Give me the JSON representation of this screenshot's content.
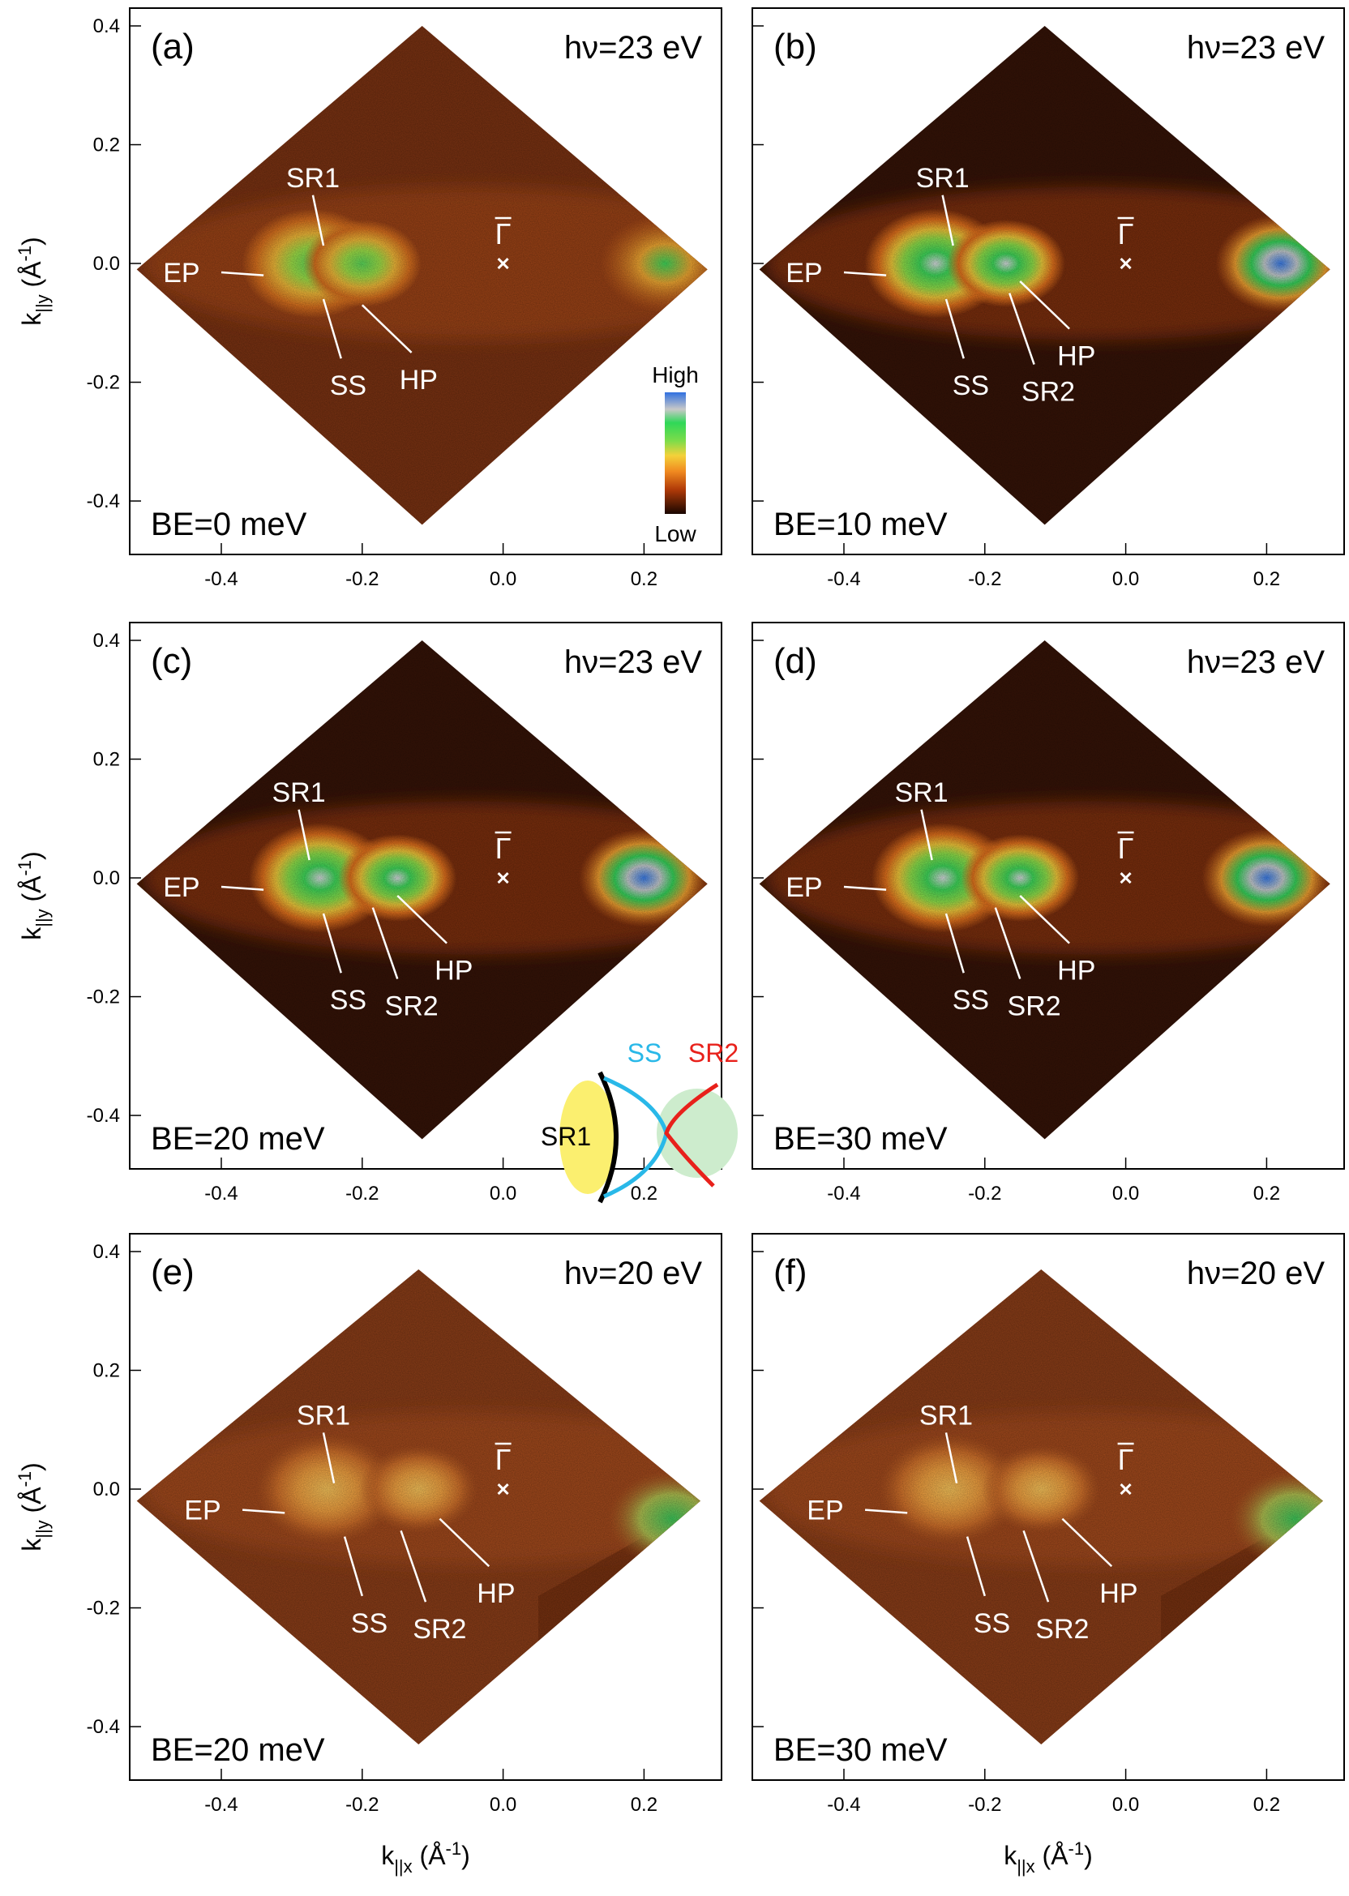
{
  "figure": {
    "axis_labels": {
      "y": {
        "main": "k",
        "sub": "||y",
        "unit": "(Å",
        "exp": "-1",
        "close": ")"
      },
      "x": {
        "main": "k",
        "sub": "||x",
        "unit": "(Å",
        "exp": "-1",
        "close": ")"
      }
    },
    "colorbar": {
      "high": "High",
      "low": "Low"
    },
    "schematic": {
      "ss": "SS",
      "sr2": "SR2",
      "sr1": "SR1",
      "colors": {
        "ss": "#29b8e8",
        "sr2": "#e8211b",
        "sr1_fill": "#fbef6f",
        "sr2_fill": "#cdeccd",
        "sr1_bracket": "#000000"
      }
    },
    "gamma_label": "Γ",
    "gamma_overline": "¯"
  },
  "chart_data": [
    {
      "panel": "(a)",
      "type": "heatmap",
      "hv": "hν=23 eV",
      "be": "BE=0 meV",
      "xlim": [
        -0.53,
        0.31
      ],
      "ylim": [
        -0.49,
        0.43
      ],
      "xticks": [
        "-0.4",
        "-0.2",
        "0.0",
        "0.2"
      ],
      "yticks": [
        "0.4",
        "0.2",
        "0.0",
        "-0.2",
        "-0.4"
      ],
      "show_yticklabels": true,
      "show_xlabel": false,
      "map_region": {
        "left_x": -0.52,
        "right_x": 0.29,
        "top_y": 0.4,
        "bottom_y": -0.44,
        "center_y": -0.01
      },
      "labels": [
        "SR1",
        "EP",
        "SS",
        "HP"
      ],
      "features": [
        {
          "name": "SR1",
          "x": -0.27,
          "y": 0.0
        },
        {
          "name": "HP",
          "x": -0.2,
          "y": 0.0
        },
        {
          "name": "side",
          "x": 0.23,
          "y": 0.0
        }
      ],
      "intensity": "medium"
    },
    {
      "panel": "(b)",
      "type": "heatmap",
      "hv": "hν=23 eV",
      "be": "BE=10 meV",
      "xlim": [
        -0.53,
        0.31
      ],
      "ylim": [
        -0.49,
        0.43
      ],
      "xticks": [
        "-0.4",
        "-0.2",
        "0.0",
        "0.2"
      ],
      "yticks": [
        "0.4",
        "0.2",
        "0.0",
        "-0.2",
        "-0.4"
      ],
      "show_yticklabels": false,
      "show_xlabel": false,
      "map_region": {
        "left_x": -0.52,
        "right_x": 0.29,
        "top_y": 0.4,
        "bottom_y": -0.44,
        "center_y": -0.01
      },
      "labels": [
        "SR1",
        "EP",
        "SS",
        "SR2",
        "HP"
      ],
      "features": [
        {
          "name": "SR1",
          "x": -0.27,
          "y": 0.0
        },
        {
          "name": "HP",
          "x": -0.17,
          "y": 0.0
        },
        {
          "name": "side",
          "x": 0.22,
          "y": 0.0
        }
      ],
      "intensity": "high"
    },
    {
      "panel": "(c)",
      "type": "heatmap",
      "hv": "hν=23 eV",
      "be": "BE=20 meV",
      "xlim": [
        -0.53,
        0.31
      ],
      "ylim": [
        -0.49,
        0.43
      ],
      "xticks": [
        "-0.4",
        "-0.2",
        "0.0",
        "0.2"
      ],
      "yticks": [
        "0.4",
        "0.2",
        "0.0",
        "-0.2",
        "-0.4"
      ],
      "show_yticklabels": true,
      "show_xlabel": false,
      "map_region": {
        "left_x": -0.52,
        "right_x": 0.29,
        "top_y": 0.4,
        "bottom_y": -0.44,
        "center_y": -0.01
      },
      "labels": [
        "SR1",
        "EP",
        "SS",
        "SR2",
        "HP"
      ],
      "features": [
        {
          "name": "SR1",
          "x": -0.26,
          "y": 0.0
        },
        {
          "name": "HP",
          "x": -0.15,
          "y": 0.0
        },
        {
          "name": "side",
          "x": 0.2,
          "y": 0.0
        }
      ],
      "intensity": "high"
    },
    {
      "panel": "(d)",
      "type": "heatmap",
      "hv": "hν=23 eV",
      "be": "BE=30 meV",
      "xlim": [
        -0.53,
        0.31
      ],
      "ylim": [
        -0.49,
        0.43
      ],
      "xticks": [
        "-0.4",
        "-0.2",
        "0.0",
        "0.2"
      ],
      "yticks": [
        "0.4",
        "0.2",
        "0.0",
        "-0.2",
        "-0.4"
      ],
      "show_yticklabels": false,
      "show_xlabel": false,
      "map_region": {
        "left_x": -0.52,
        "right_x": 0.29,
        "top_y": 0.4,
        "bottom_y": -0.44,
        "center_y": -0.01
      },
      "labels": [
        "SR1",
        "EP",
        "SS",
        "SR2",
        "HP"
      ],
      "features": [
        {
          "name": "SR1",
          "x": -0.26,
          "y": 0.0
        },
        {
          "name": "HP",
          "x": -0.15,
          "y": 0.0
        },
        {
          "name": "side",
          "x": 0.2,
          "y": 0.0
        }
      ],
      "intensity": "high"
    },
    {
      "panel": "(e)",
      "type": "heatmap",
      "hv": "hν=20 eV",
      "be": "BE=20 meV",
      "xlim": [
        -0.53,
        0.31
      ],
      "ylim": [
        -0.49,
        0.43
      ],
      "xticks": [
        "-0.4",
        "-0.2",
        "0.0",
        "0.2"
      ],
      "yticks": [
        "0.4",
        "0.2",
        "0.0",
        "-0.2",
        "-0.4"
      ],
      "show_yticklabels": true,
      "show_xlabel": true,
      "map_region": {
        "left_x": -0.52,
        "right_x": 0.28,
        "top_y": 0.37,
        "bottom_y": -0.43,
        "center_y": -0.02
      },
      "labels": [
        "SR1",
        "EP",
        "SS",
        "SR2",
        "HP"
      ],
      "features": [
        {
          "name": "SR1",
          "x": -0.25,
          "y": 0.0
        },
        {
          "name": "HP",
          "x": -0.12,
          "y": 0.0
        },
        {
          "name": "side",
          "x": 0.24,
          "y": -0.05
        }
      ],
      "intensity": "low"
    },
    {
      "panel": "(f)",
      "type": "heatmap",
      "hv": "hν=20 eV",
      "be": "BE=30 meV",
      "xlim": [
        -0.53,
        0.31
      ],
      "ylim": [
        -0.49,
        0.43
      ],
      "xticks": [
        "-0.4",
        "-0.2",
        "0.0",
        "0.2"
      ],
      "yticks": [
        "0.4",
        "0.2",
        "0.0",
        "-0.2",
        "-0.4"
      ],
      "show_yticklabels": false,
      "show_xlabel": true,
      "map_region": {
        "left_x": -0.52,
        "right_x": 0.28,
        "top_y": 0.37,
        "bottom_y": -0.43,
        "center_y": -0.02
      },
      "labels": [
        "SR1",
        "EP",
        "SS",
        "SR2",
        "HP"
      ],
      "features": [
        {
          "name": "SR1",
          "x": -0.25,
          "y": 0.0
        },
        {
          "name": "HP",
          "x": -0.12,
          "y": 0.0
        },
        {
          "name": "side",
          "x": 0.24,
          "y": -0.05
        }
      ],
      "intensity": "low"
    }
  ]
}
